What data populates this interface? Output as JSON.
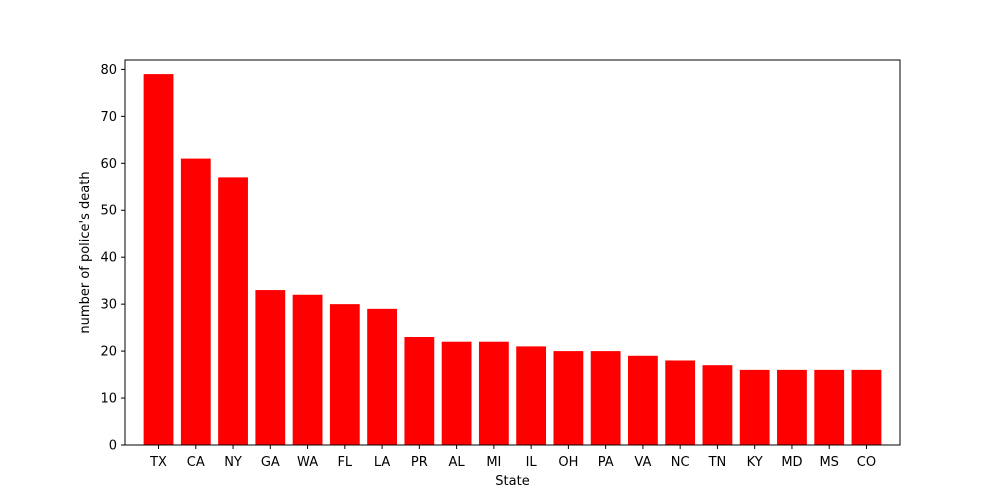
{
  "chart_data": {
    "type": "bar",
    "categories": [
      "TX",
      "CA",
      "NY",
      "GA",
      "WA",
      "FL",
      "LA",
      "PR",
      "AL",
      "MI",
      "IL",
      "OH",
      "PA",
      "VA",
      "NC",
      "TN",
      "KY",
      "MD",
      "MS",
      "CO"
    ],
    "values": [
      79,
      61,
      57,
      33,
      32,
      30,
      29,
      23,
      22,
      22,
      21,
      20,
      20,
      19,
      18,
      17,
      16,
      16,
      16,
      16
    ],
    "title": "",
    "xlabel": "State",
    "ylabel": "number of police's death",
    "ylim": [
      0,
      82
    ],
    "yticks": [
      0,
      10,
      20,
      30,
      40,
      50,
      60,
      70,
      80
    ],
    "bar_color": "#ff0000",
    "grid": false,
    "legend": "none"
  }
}
